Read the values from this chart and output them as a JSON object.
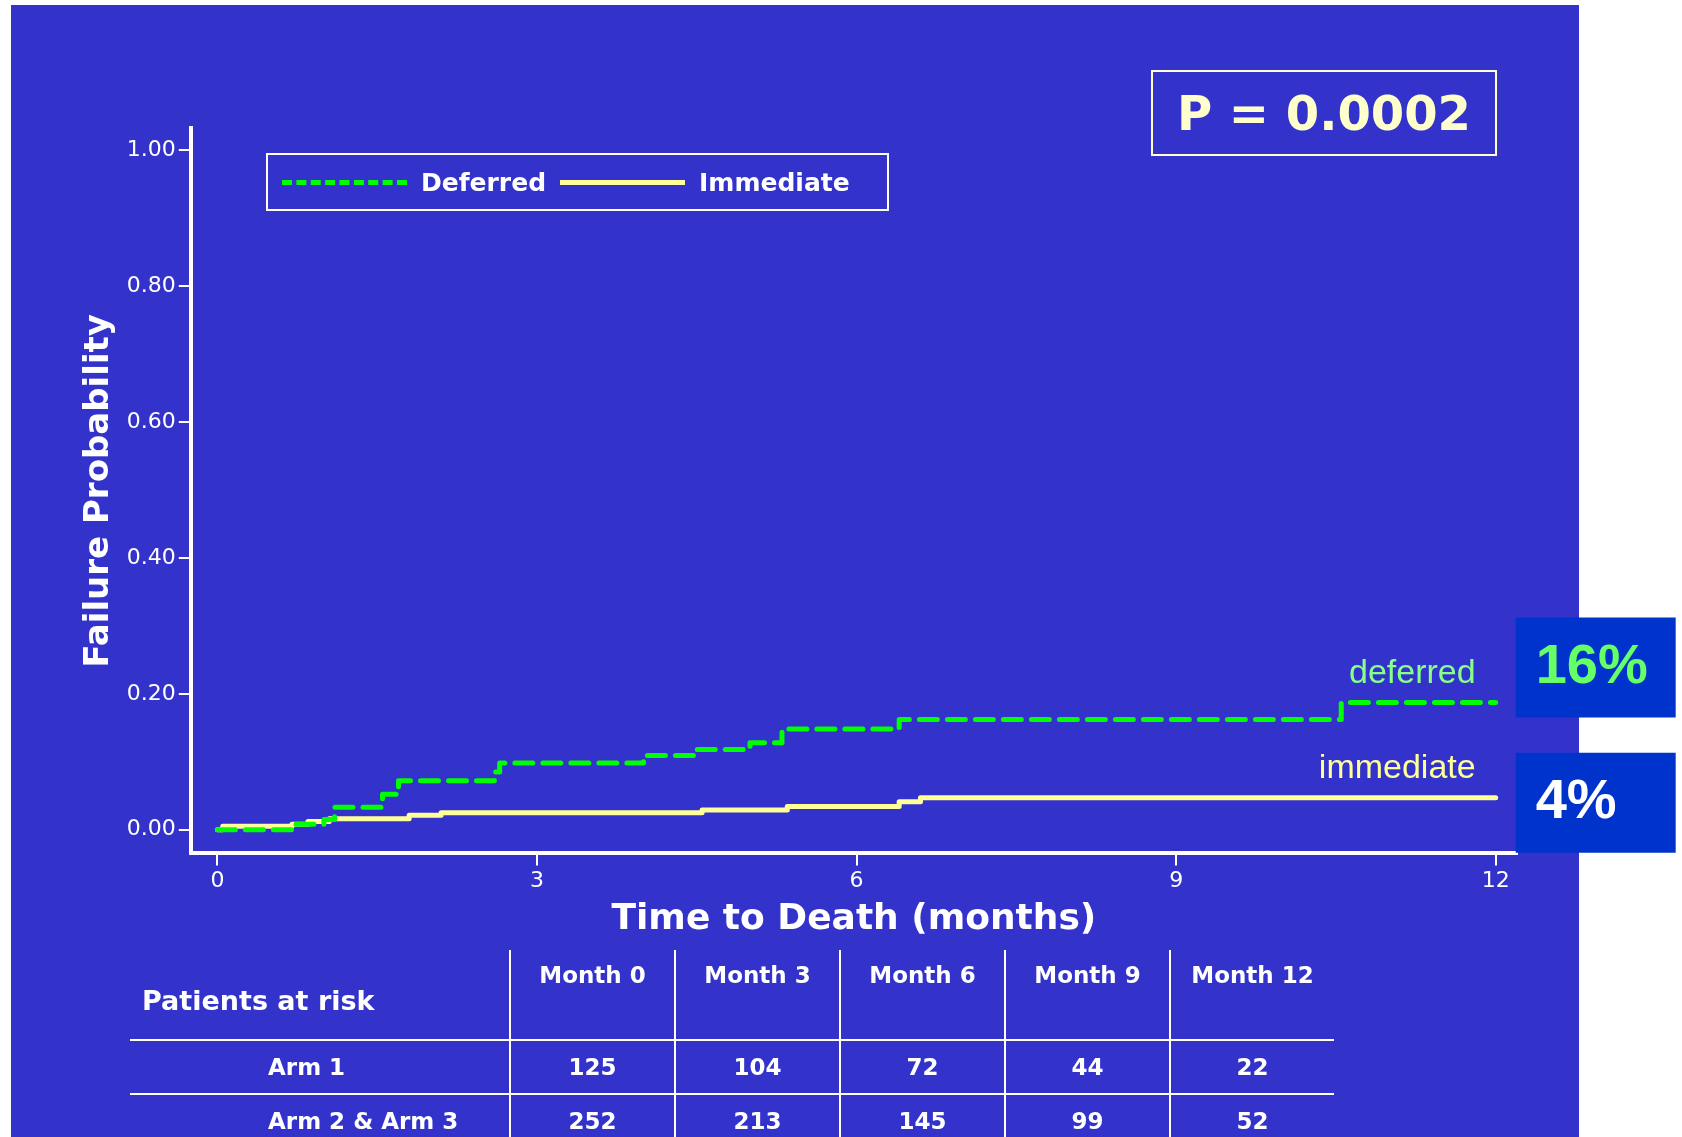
{
  "chart_data": {
    "type": "step",
    "xlabel": "Time to Death (months)",
    "ylabel": "Failure Probability",
    "xlim": [
      -0.25,
      12.2
    ],
    "xticks": [
      0,
      3,
      6,
      9,
      12
    ],
    "ylim": [
      -0.035,
      1.033
    ],
    "yticks": [
      {
        "value": 0,
        "label": "0.00"
      },
      {
        "value": 0.2,
        "label": "0.20"
      },
      {
        "value": 0.4,
        "label": "0.40"
      },
      {
        "value": 0.6,
        "label": "0.60"
      },
      {
        "value": 0.8,
        "label": "0.80"
      },
      {
        "value": 1,
        "label": "1.00"
      }
    ],
    "grid": false,
    "legend": "top left",
    "series": [
      {
        "name": "Deferred",
        "color": "#00ff00",
        "line_style": "dashed",
        "x": [
          0,
          0.7,
          1.0,
          1.1,
          1.55,
          1.7,
          2.6,
          2.65,
          4.0,
          4.5,
          5.0,
          5.3,
          6.4,
          10.55,
          12
        ],
        "values": [
          0,
          0.008,
          0.015,
          0.033,
          0.052,
          0.072,
          0.085,
          0.098,
          0.109,
          0.118,
          0.128,
          0.148,
          0.162,
          0.187,
          0.187
        ]
      },
      {
        "name": "Immediate",
        "color": "#ffff99",
        "line_style": "solid",
        "x": [
          0,
          0.05,
          0.7,
          0.85,
          1.05,
          1.8,
          2.1,
          4.55,
          5.35,
          6.4,
          6.6,
          12
        ],
        "values": [
          0,
          0.005,
          0.008,
          0.012,
          0.016,
          0.021,
          0.025,
          0.029,
          0.034,
          0.041,
          0.047,
          0.047
        ]
      }
    ],
    "annotations": [
      "P = 0.0002",
      "deferred",
      "immediate",
      {
        "text": "16%",
        "x": 12,
        "y": 0.187
      },
      {
        "text": "4%",
        "x": 12,
        "y": 0.047
      },
      "Patients at risk",
      "Month 0",
      "Month 3",
      "Month 6",
      "Month 9",
      "Month 12",
      "Arm 1",
      "125",
      "104",
      "72",
      "44",
      "22",
      "Arm 2 & Arm 3",
      "252",
      "213",
      "145",
      "99",
      "52"
    ]
  }
}
